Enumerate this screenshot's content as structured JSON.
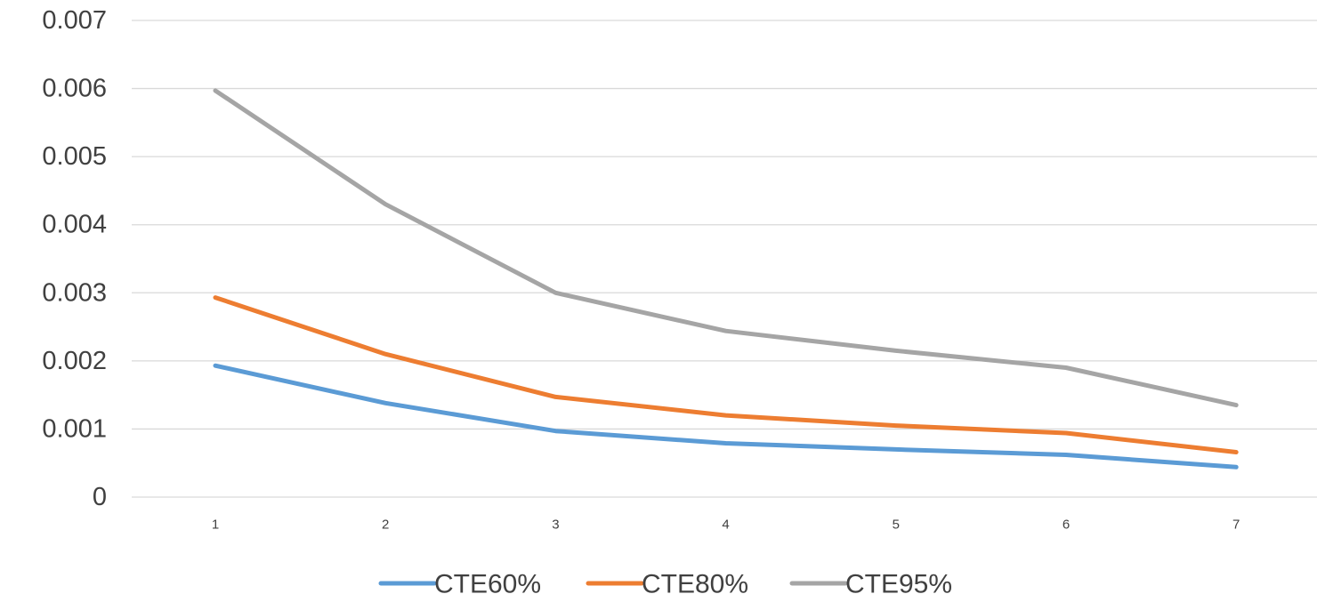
{
  "chart_data": {
    "type": "line",
    "title": "",
    "xlabel": "",
    "ylabel": "",
    "categories": [
      "1",
      "2",
      "3",
      "4",
      "5",
      "6",
      "7"
    ],
    "yticks": [
      "0",
      "0.001",
      "0.002",
      "0.003",
      "0.004",
      "0.005",
      "0.006",
      "0.007"
    ],
    "ylim": [
      0,
      0.007
    ],
    "grid": true,
    "legend_position": "bottom",
    "series": [
      {
        "name": "CTE60%",
        "color": "#5B9BD5",
        "values": [
          0.00193,
          0.00138,
          0.00097,
          0.00079,
          0.0007,
          0.00062,
          0.00044
        ]
      },
      {
        "name": "CTE80%",
        "color": "#ED7D31",
        "values": [
          0.00293,
          0.0021,
          0.00147,
          0.0012,
          0.00105,
          0.00094,
          0.00066
        ]
      },
      {
        "name": "CTE95%",
        "color": "#A5A5A5",
        "values": [
          0.00597,
          0.0043,
          0.003,
          0.00244,
          0.00215,
          0.0019,
          0.00135
        ]
      }
    ]
  }
}
